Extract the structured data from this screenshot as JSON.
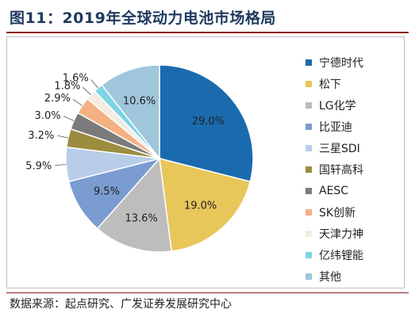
{
  "figure_title": "图11：2019年全球动力电池市场格局",
  "source_note": "数据来源：起点研究、广发证券发展研究中心",
  "chart_data": {
    "type": "pie",
    "title": "",
    "unit": "%",
    "legend_position": "right",
    "slices": [
      {
        "label": "宁德时代",
        "value": 29.0,
        "display": "29.0%",
        "color": "#1a6bad"
      },
      {
        "label": "松下",
        "value": 19.0,
        "display": "19.0%",
        "color": "#e8c65a"
      },
      {
        "label": "LG化学",
        "value": 13.6,
        "display": "13.6%",
        "color": "#bdbdbd"
      },
      {
        "label": "比亚迪",
        "value": 9.5,
        "display": "9.5%",
        "color": "#7a9cd0"
      },
      {
        "label": "三星SDI",
        "value": 5.9,
        "display": "5.9%",
        "color": "#b7cde8"
      },
      {
        "label": "国轩高科",
        "value": 3.2,
        "display": "3.2%",
        "color": "#9c8c3e"
      },
      {
        "label": "AESC",
        "value": 3.0,
        "display": "3.0%",
        "color": "#7b7b7b"
      },
      {
        "label": "SK创新",
        "value": 2.9,
        "display": "2.9%",
        "color": "#f4b183"
      },
      {
        "label": "天津力神",
        "value": 1.8,
        "display": "1.8%",
        "color": "#f2ede0"
      },
      {
        "label": "亿纬锂能",
        "value": 1.6,
        "display": "1.6%",
        "color": "#7fd3e6"
      },
      {
        "label": "其他",
        "value": 10.6,
        "display": "10.6%",
        "color": "#9fc6db"
      }
    ]
  }
}
